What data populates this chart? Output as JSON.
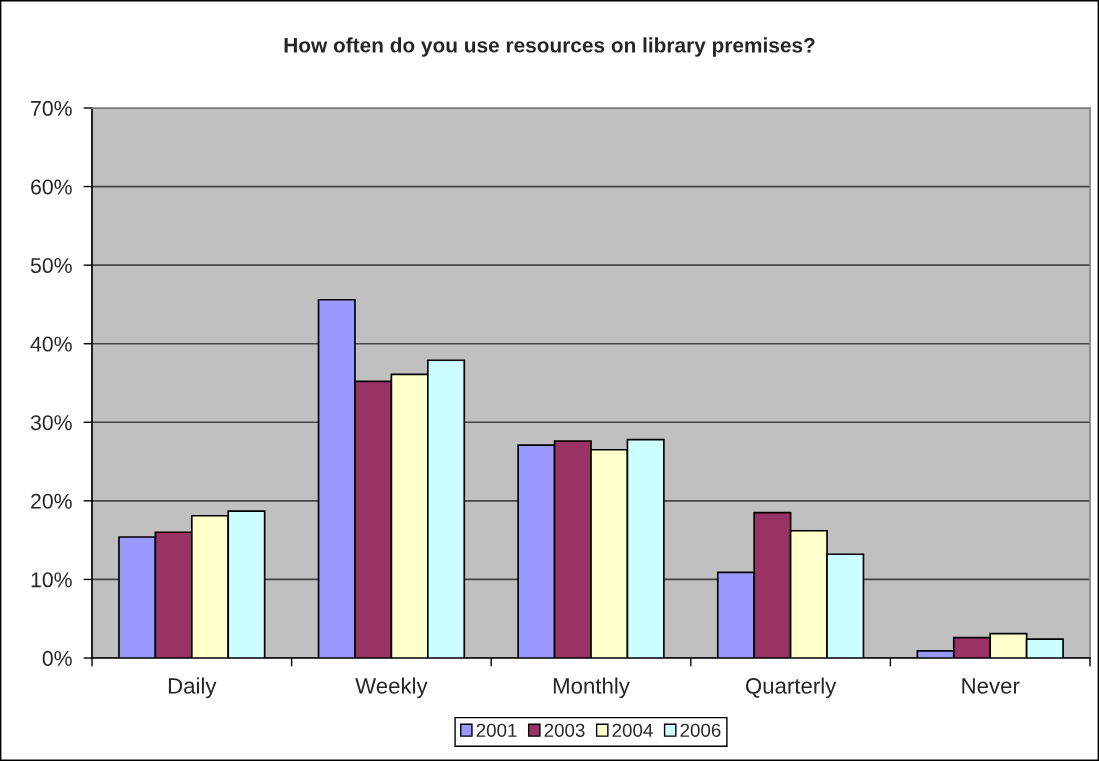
{
  "chart_data": {
    "type": "bar",
    "title": "How often do you use resources on library premises?",
    "categories": [
      "Daily",
      "Weekly",
      "Monthly",
      "Quarterly",
      "Never"
    ],
    "series": [
      {
        "name": "2001",
        "color": "#9999ff",
        "values": [
          15.4,
          45.6,
          27.1,
          10.9,
          0.9
        ]
      },
      {
        "name": "2003",
        "color": "#993366",
        "values": [
          16.0,
          35.2,
          27.6,
          18.5,
          2.6
        ]
      },
      {
        "name": "2004",
        "color": "#ffffcc",
        "values": [
          18.1,
          36.1,
          26.5,
          16.2,
          3.1
        ]
      },
      {
        "name": "2006",
        "color": "#ccffff",
        "values": [
          18.7,
          37.9,
          27.8,
          13.2,
          2.4
        ]
      }
    ],
    "ylim": [
      0,
      70
    ],
    "yticks": [
      {
        "value": 0,
        "label": "0%"
      },
      {
        "value": 10,
        "label": "10%"
      },
      {
        "value": 20,
        "label": "20%"
      },
      {
        "value": 30,
        "label": "30%"
      },
      {
        "value": 40,
        "label": "40%"
      },
      {
        "value": 50,
        "label": "50%"
      },
      {
        "value": 60,
        "label": "60%"
      },
      {
        "value": 70,
        "label": "70%"
      }
    ],
    "grid": "y",
    "legend": "bottom"
  }
}
